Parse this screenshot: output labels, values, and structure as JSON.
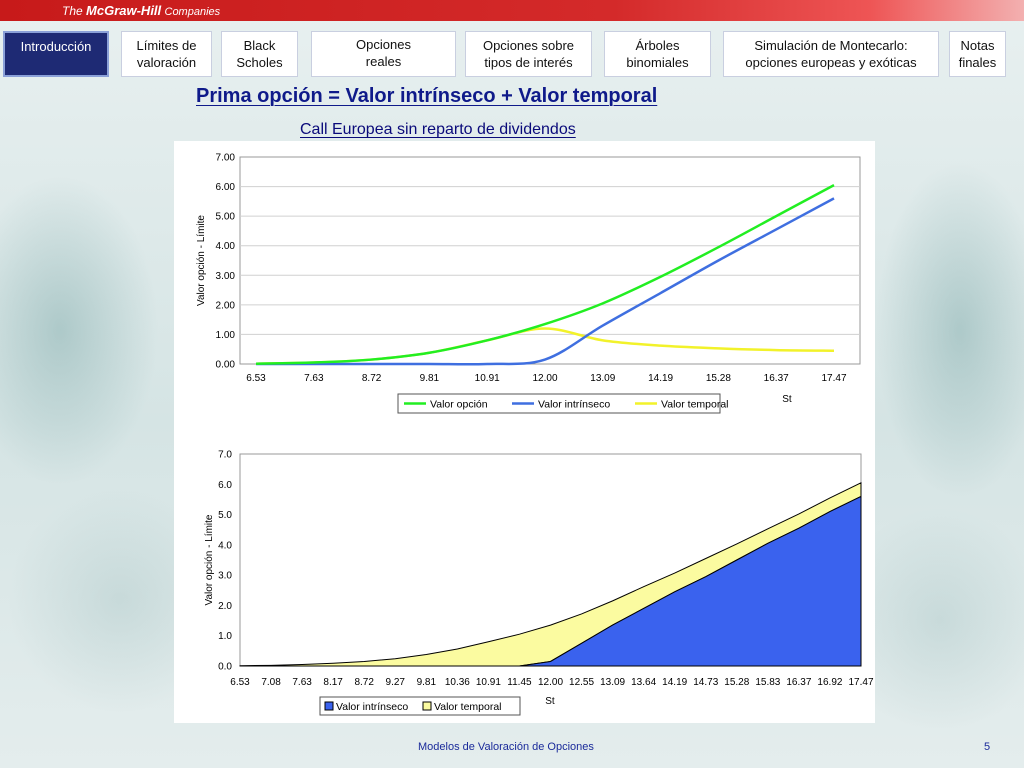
{
  "brand": {
    "logo_prefix": "The",
    "logo_name": "McGraw-Hill",
    "logo_suffix": "Companies",
    "bar_color": "#c71a1a"
  },
  "nav": [
    {
      "label": "Introducción"
    },
    {
      "label": "Límites de\nvaloración"
    },
    {
      "label": "Black\nScholes"
    },
    {
      "label": "Opciones\nreales"
    },
    {
      "label": "Opciones sobre\ntipos de interés"
    },
    {
      "label": "Árboles\nbinomiales"
    },
    {
      "label": "Simulación de Montecarlo:\nopciones europeas y exóticas"
    },
    {
      "label": "Notas\nfinales"
    }
  ],
  "slide": {
    "title": "Prima opción = Valor intrínseco + Valor temporal",
    "subtitle": "Call Europea sin reparto de dividendos"
  },
  "footer": {
    "text": "Modelos de Valoración de Opciones",
    "page": "5"
  },
  "chart_data": [
    {
      "type": "line",
      "xlabel": "St",
      "ylabel": "Valor opción - Límite",
      "ylim": [
        0,
        7
      ],
      "yticks": [
        "0.00",
        "1.00",
        "2.00",
        "3.00",
        "4.00",
        "5.00",
        "6.00",
        "7.00"
      ],
      "x_tick_labels": [
        "6.53",
        "7.63",
        "8.72",
        "9.81",
        "10.91",
        "12.00",
        "13.09",
        "14.19",
        "15.28",
        "16.37",
        "17.47"
      ],
      "x": [
        6.53,
        7.63,
        8.72,
        9.81,
        10.91,
        12.0,
        13.09,
        14.19,
        15.28,
        16.37,
        17.47
      ],
      "legend_position": "bottom",
      "series": [
        {
          "name": "Valor opción",
          "color": "#22ee22",
          "values": [
            0.01,
            0.05,
            0.15,
            0.38,
            0.8,
            1.35,
            2.05,
            2.95,
            3.95,
            5.0,
            6.05
          ]
        },
        {
          "name": "Valor intrínseco",
          "color": "#3f6fe0",
          "values": [
            0,
            0,
            0,
            0,
            0,
            0.15,
            1.3,
            2.4,
            3.5,
            4.55,
            5.6
          ]
        },
        {
          "name": "Valor temporal",
          "color": "#f2f22a",
          "values": [
            0.01,
            0.05,
            0.15,
            0.38,
            0.8,
            1.2,
            0.8,
            0.62,
            0.53,
            0.47,
            0.45
          ]
        }
      ]
    },
    {
      "type": "area",
      "xlabel": "St",
      "ylabel": "Valor opción - Límite",
      "ylim": [
        0,
        7
      ],
      "yticks": [
        "0.0",
        "1.0",
        "2.0",
        "3.0",
        "4.0",
        "5.0",
        "6.0",
        "7.0"
      ],
      "x_tick_labels": [
        "6.53",
        "7.08",
        "7.63",
        "8.17",
        "8.72",
        "9.27",
        "9.81",
        "10.36",
        "10.91",
        "11.45",
        "12.00",
        "12.55",
        "13.09",
        "13.64",
        "14.19",
        "14.73",
        "15.28",
        "15.83",
        "16.37",
        "16.92",
        "17.47"
      ],
      "x": [
        6.53,
        7.08,
        7.63,
        8.17,
        8.72,
        9.27,
        9.81,
        10.36,
        10.91,
        11.45,
        12.0,
        12.55,
        13.09,
        13.64,
        14.19,
        14.73,
        15.28,
        15.83,
        16.37,
        16.92,
        17.47
      ],
      "legend_position": "bottom",
      "stacked": true,
      "series": [
        {
          "name": "Valor intrínseco",
          "color": "#3a62ee",
          "values": [
            0,
            0,
            0,
            0,
            0,
            0,
            0,
            0,
            0,
            0,
            0.15,
            0.75,
            1.35,
            1.9,
            2.45,
            2.95,
            3.5,
            4.05,
            4.55,
            5.1,
            5.6
          ]
        },
        {
          "name": "Valor temporal",
          "color": "#fbfba0",
          "values": [
            0.01,
            0.02,
            0.05,
            0.09,
            0.15,
            0.24,
            0.38,
            0.56,
            0.8,
            1.05,
            1.2,
            0.97,
            0.8,
            0.72,
            0.62,
            0.6,
            0.53,
            0.48,
            0.47,
            0.45,
            0.45
          ]
        }
      ]
    }
  ]
}
